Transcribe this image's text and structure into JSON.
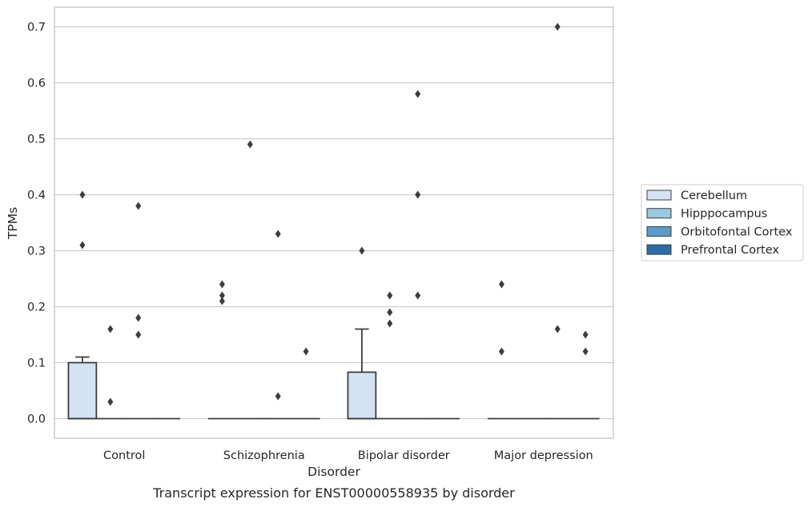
{
  "caption": "Transcript expression for ENST00000558935 by disorder",
  "chart_data": {
    "type": "box",
    "xlabel": "Disorder",
    "ylabel": "TPMs",
    "ylim": [
      -0.035,
      0.735
    ],
    "yticks": [
      0.0,
      0.1,
      0.2,
      0.3,
      0.4,
      0.5,
      0.6,
      0.7
    ],
    "grid": "horizontal",
    "legend_position": "right",
    "categories": [
      "Control",
      "Schizophrenia",
      "Bipolar disorder",
      "Major depression"
    ],
    "series": [
      {
        "name": "Cerebellum",
        "color": "#d2e3f3",
        "boxes": [
          {
            "q1": 0.0,
            "median": 0.0,
            "q3": 0.1,
            "whisker_low": 0.0,
            "whisker_high": 0.11,
            "outliers": [
              0.4,
              0.31
            ]
          },
          {
            "q1": 0.0,
            "median": 0.0,
            "q3": 0.0,
            "whisker_low": 0.0,
            "whisker_high": 0.0,
            "outliers": [
              0.24,
              0.22,
              0.21
            ]
          },
          {
            "q1": 0.0,
            "median": 0.0,
            "q3": 0.083,
            "whisker_low": 0.0,
            "whisker_high": 0.16,
            "outliers": [
              0.3
            ]
          },
          {
            "q1": 0.0,
            "median": 0.0,
            "q3": 0.0,
            "whisker_low": 0.0,
            "whisker_high": 0.0,
            "outliers": [
              0.24,
              0.12
            ]
          }
        ]
      },
      {
        "name": "Hipppocampus",
        "color": "#9ac8e0",
        "boxes": [
          {
            "q1": 0.0,
            "median": 0.0,
            "q3": 0.0,
            "whisker_low": 0.0,
            "whisker_high": 0.0,
            "outliers": [
              0.16,
              0.03
            ]
          },
          {
            "q1": 0.0,
            "median": 0.0,
            "q3": 0.0,
            "whisker_low": 0.0,
            "whisker_high": 0.0,
            "outliers": [
              0.49
            ]
          },
          {
            "q1": 0.0,
            "median": 0.0,
            "q3": 0.0,
            "whisker_low": 0.0,
            "whisker_high": 0.0,
            "outliers": [
              0.22,
              0.19,
              0.17
            ]
          },
          {
            "q1": 0.0,
            "median": 0.0,
            "q3": 0.0,
            "whisker_low": 0.0,
            "whisker_high": 0.0,
            "outliers": []
          }
        ]
      },
      {
        "name": "Orbitofontal Cortex",
        "color": "#5b9bc9",
        "boxes": [
          {
            "q1": 0.0,
            "median": 0.0,
            "q3": 0.0,
            "whisker_low": 0.0,
            "whisker_high": 0.0,
            "outliers": [
              0.38,
              0.18,
              0.15
            ]
          },
          {
            "q1": 0.0,
            "median": 0.0,
            "q3": 0.0,
            "whisker_low": 0.0,
            "whisker_high": 0.0,
            "outliers": [
              0.33,
              0.04
            ]
          },
          {
            "q1": 0.0,
            "median": 0.0,
            "q3": 0.0,
            "whisker_low": 0.0,
            "whisker_high": 0.0,
            "outliers": [
              0.58,
              0.4,
              0.22
            ]
          },
          {
            "q1": 0.0,
            "median": 0.0,
            "q3": 0.0,
            "whisker_low": 0.0,
            "whisker_high": 0.0,
            "outliers": [
              0.7,
              0.16
            ]
          }
        ]
      },
      {
        "name": "Prefrontal Cortex",
        "color": "#2b6ba8",
        "boxes": [
          {
            "q1": 0.0,
            "median": 0.0,
            "q3": 0.0,
            "whisker_low": 0.0,
            "whisker_high": 0.0,
            "outliers": []
          },
          {
            "q1": 0.0,
            "median": 0.0,
            "q3": 0.0,
            "whisker_low": 0.0,
            "whisker_high": 0.0,
            "outliers": [
              0.12
            ]
          },
          {
            "q1": 0.0,
            "median": 0.0,
            "q3": 0.0,
            "whisker_low": 0.0,
            "whisker_high": 0.0,
            "outliers": []
          },
          {
            "q1": 0.0,
            "median": 0.0,
            "q3": 0.0,
            "whisker_low": 0.0,
            "whisker_high": 0.0,
            "outliers": [
              0.15,
              0.12
            ]
          }
        ]
      }
    ]
  }
}
